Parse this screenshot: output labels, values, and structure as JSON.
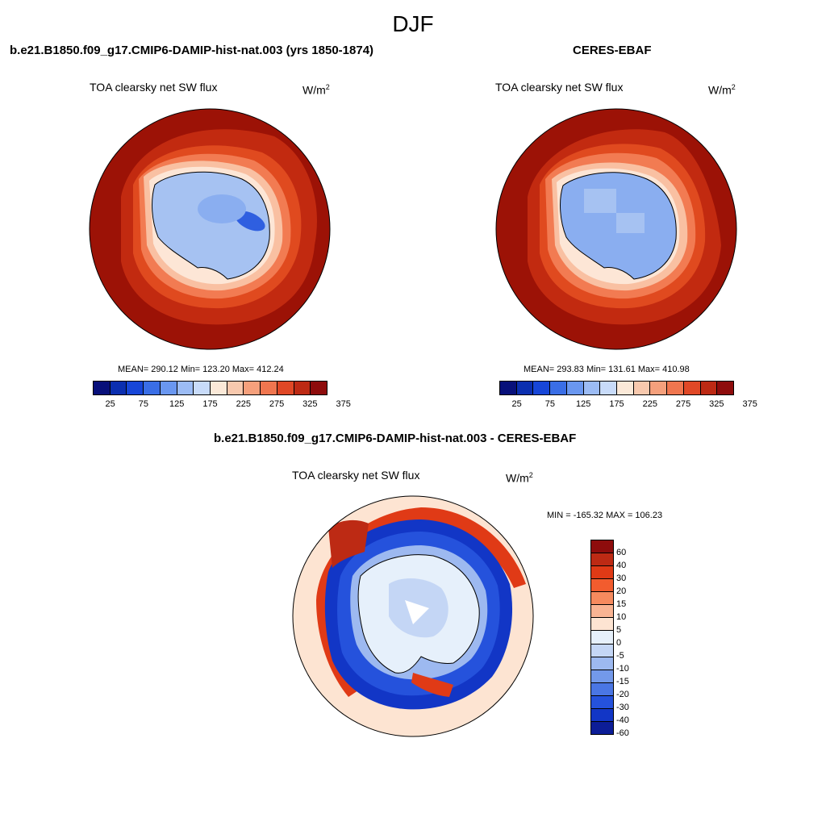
{
  "page": {
    "title": "DJF"
  },
  "panels": {
    "model": {
      "title": "b.e21.B1850.f09_g17.CMIP6-DAMIP-hist-nat.003 (yrs 1850-1874)",
      "variable": "TOA clearsky net SW flux",
      "units_base": "W/m",
      "units_exp": "2",
      "stats": "MEAN= 290.12  Min= 123.20  Max= 412.24"
    },
    "obs": {
      "title": "CERES-EBAF",
      "variable": "TOA clearsky net SW flux",
      "units_base": "W/m",
      "units_exp": "2",
      "stats": "MEAN= 293.83  Min= 131.61  Max= 410.98"
    },
    "diff": {
      "title": "b.e21.B1850.f09_g17.CMIP6-DAMIP-hist-nat.003 - CERES-EBAF",
      "variable": "TOA clearsky net SW flux",
      "units_base": "W/m",
      "units_exp": "2",
      "stats": "MIN = -165.32 MAX = 106.23"
    }
  },
  "colorbar_abs": {
    "colors": [
      "#08107a",
      "#0b2fb0",
      "#1746d8",
      "#3a6ee6",
      "#6a97f0",
      "#9cbcf5",
      "#c8dbf9",
      "#fbe9d8",
      "#f8c9ae",
      "#f5a07c",
      "#f0764f",
      "#e04826",
      "#bd2a14",
      "#8e0c0c"
    ],
    "ticks": [
      "25",
      "75",
      "125",
      "175",
      "225",
      "275",
      "325",
      "375"
    ]
  },
  "colorbar_diff": {
    "colors": [
      "#8e0c0c",
      "#bd2a14",
      "#e03a16",
      "#f25c2e",
      "#f68a5e",
      "#f9b493",
      "#fde4d2",
      "#e6f0fb",
      "#c4d6f5",
      "#9db9f0",
      "#7399ea",
      "#4a76e4",
      "#2552dc",
      "#1236c6",
      "#0c1d97"
    ],
    "ticks": [
      "60",
      "40",
      "30",
      "20",
      "15",
      "10",
      "5",
      "0",
      "-5",
      "-10",
      "-15",
      "-20",
      "-30",
      "-40",
      "-60"
    ]
  },
  "map_colors": {
    "dark_red": "#9c1206",
    "red": "#d43a18",
    "orange_red": "#f06a3f",
    "salmon": "#f7ad8a",
    "peach": "#fde6d6",
    "pale_blue": "#cfe0f8",
    "light_blue": "#a6c2f2",
    "mid_blue": "#8aaef0",
    "blue": "#2f5fe0",
    "dark_blue": "#0f2fc0"
  }
}
